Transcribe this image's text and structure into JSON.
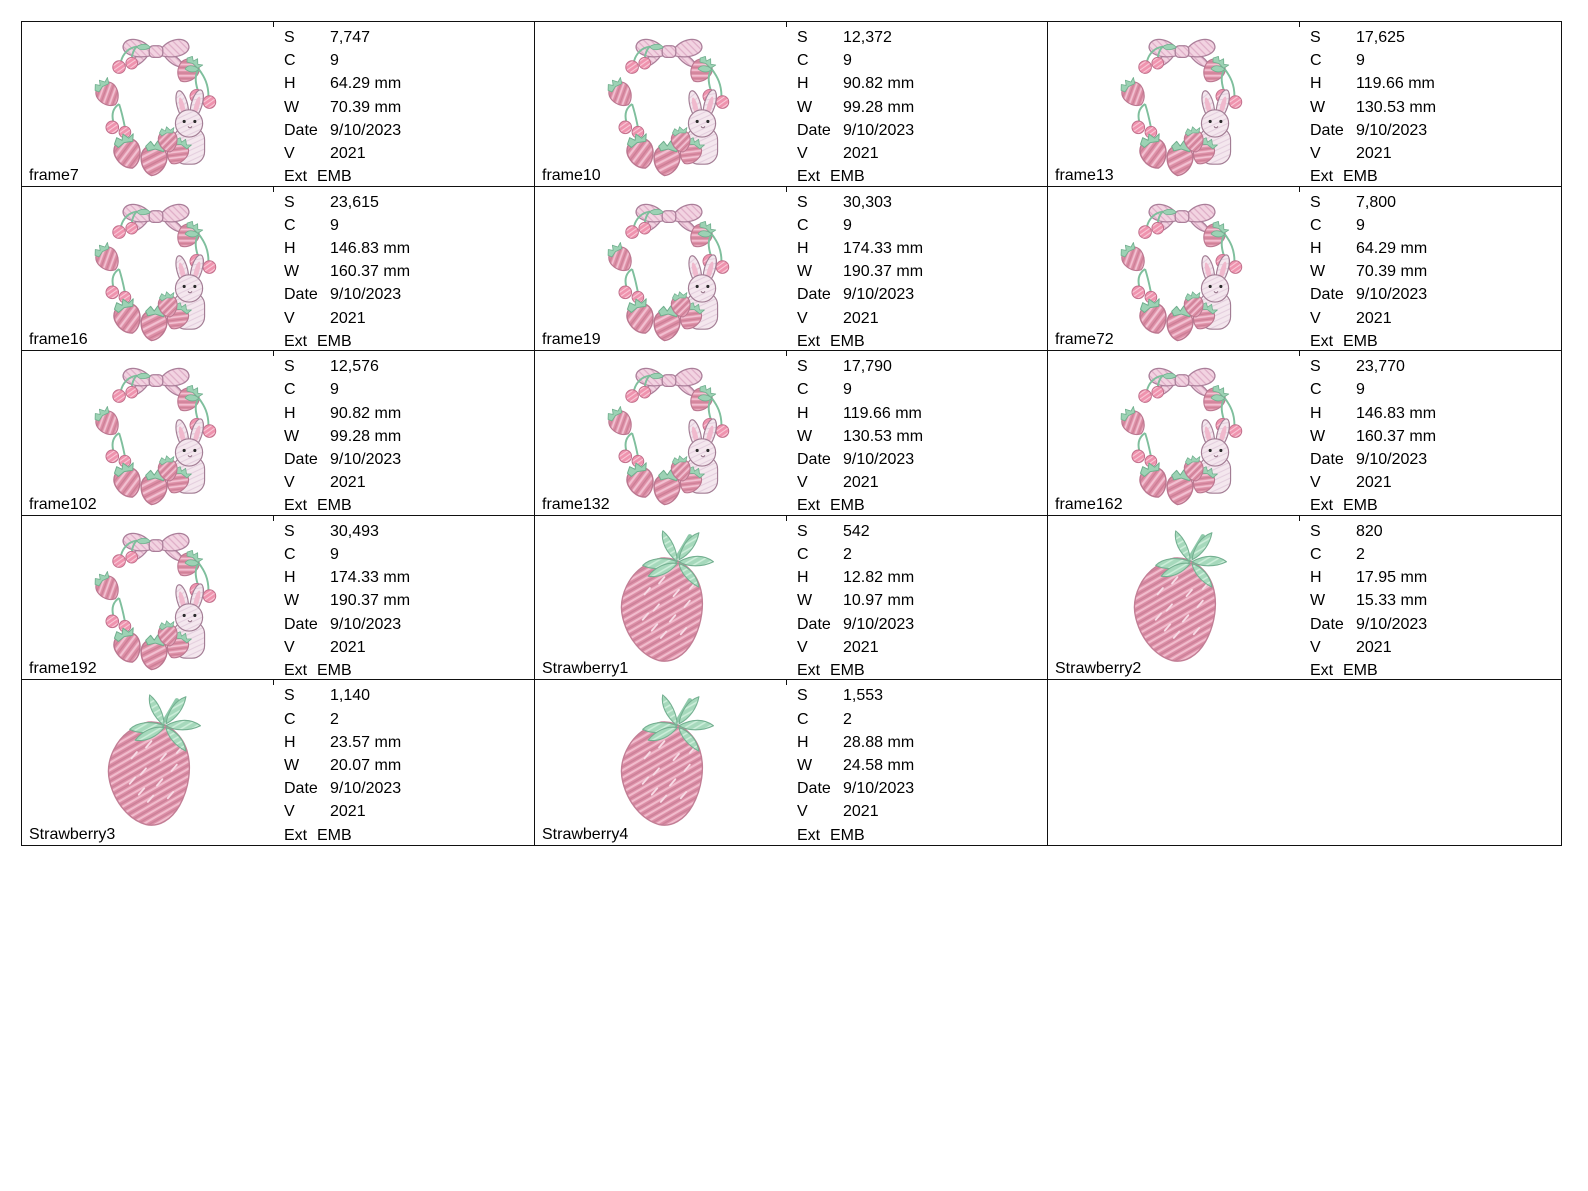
{
  "page": {
    "background": "#ffffff"
  },
  "table": {
    "meta_field_labels": [
      "S",
      "C",
      "H",
      "W",
      "Date",
      "V",
      "Ext"
    ],
    "trailing_empty_cells": 1,
    "cells": [
      {
        "name": "frame7",
        "image": "wreath",
        "meta": [
          [
            "S",
            "7,747"
          ],
          [
            "C",
            "9"
          ],
          [
            "H",
            "64.29 mm"
          ],
          [
            "W",
            "70.39 mm"
          ],
          [
            "Date",
            "9/10/2023"
          ],
          [
            "V",
            "2021"
          ],
          [
            "Ext",
            "EMB"
          ]
        ]
      },
      {
        "name": "frame10",
        "image": "wreath",
        "meta": [
          [
            "S",
            "12,372"
          ],
          [
            "C",
            "9"
          ],
          [
            "H",
            "90.82 mm"
          ],
          [
            "W",
            "99.28 mm"
          ],
          [
            "Date",
            "9/10/2023"
          ],
          [
            "V",
            "2021"
          ],
          [
            "Ext",
            "EMB"
          ]
        ]
      },
      {
        "name": "frame13",
        "image": "wreath",
        "meta": [
          [
            "S",
            "17,625"
          ],
          [
            "C",
            "9"
          ],
          [
            "H",
            "119.66 mm"
          ],
          [
            "W",
            "130.53 mm"
          ],
          [
            "Date",
            "9/10/2023"
          ],
          [
            "V",
            "2021"
          ],
          [
            "Ext",
            "EMB"
          ]
        ]
      },
      {
        "name": "frame16",
        "image": "wreath",
        "meta": [
          [
            "S",
            "23,615"
          ],
          [
            "C",
            "9"
          ],
          [
            "H",
            "146.83 mm"
          ],
          [
            "W",
            "160.37 mm"
          ],
          [
            "Date",
            "9/10/2023"
          ],
          [
            "V",
            "2021"
          ],
          [
            "Ext",
            "EMB"
          ]
        ]
      },
      {
        "name": "frame19",
        "image": "wreath",
        "meta": [
          [
            "S",
            "30,303"
          ],
          [
            "C",
            "9"
          ],
          [
            "H",
            "174.33 mm"
          ],
          [
            "W",
            "190.37 mm"
          ],
          [
            "Date",
            "9/10/2023"
          ],
          [
            "V",
            "2021"
          ],
          [
            "Ext",
            "EMB"
          ]
        ]
      },
      {
        "name": "frame72",
        "image": "wreath",
        "meta": [
          [
            "S",
            "7,800"
          ],
          [
            "C",
            "9"
          ],
          [
            "H",
            "64.29 mm"
          ],
          [
            "W",
            "70.39 mm"
          ],
          [
            "Date",
            "9/10/2023"
          ],
          [
            "V",
            "2021"
          ],
          [
            "Ext",
            "EMB"
          ]
        ]
      },
      {
        "name": "frame102",
        "image": "wreath",
        "meta": [
          [
            "S",
            "12,576"
          ],
          [
            "C",
            "9"
          ],
          [
            "H",
            "90.82 mm"
          ],
          [
            "W",
            "99.28 mm"
          ],
          [
            "Date",
            "9/10/2023"
          ],
          [
            "V",
            "2021"
          ],
          [
            "Ext",
            "EMB"
          ]
        ]
      },
      {
        "name": "frame132",
        "image": "wreath",
        "meta": [
          [
            "S",
            "17,790"
          ],
          [
            "C",
            "9"
          ],
          [
            "H",
            "119.66 mm"
          ],
          [
            "W",
            "130.53 mm"
          ],
          [
            "Date",
            "9/10/2023"
          ],
          [
            "V",
            "2021"
          ],
          [
            "Ext",
            "EMB"
          ]
        ]
      },
      {
        "name": "frame162",
        "image": "wreath",
        "meta": [
          [
            "S",
            "23,770"
          ],
          [
            "C",
            "9"
          ],
          [
            "H",
            "146.83 mm"
          ],
          [
            "W",
            "160.37 mm"
          ],
          [
            "Date",
            "9/10/2023"
          ],
          [
            "V",
            "2021"
          ],
          [
            "Ext",
            "EMB"
          ]
        ]
      },
      {
        "name": "frame192",
        "image": "wreath",
        "meta": [
          [
            "S",
            "30,493"
          ],
          [
            "C",
            "9"
          ],
          [
            "H",
            "174.33 mm"
          ],
          [
            "W",
            "190.37 mm"
          ],
          [
            "Date",
            "9/10/2023"
          ],
          [
            "V",
            "2021"
          ],
          [
            "Ext",
            "EMB"
          ]
        ]
      },
      {
        "name": "Strawberry1",
        "image": "strawberry",
        "meta": [
          [
            "S",
            "542"
          ],
          [
            "C",
            "2"
          ],
          [
            "H",
            "12.82 mm"
          ],
          [
            "W",
            "10.97 mm"
          ],
          [
            "Date",
            "9/10/2023"
          ],
          [
            "V",
            "2021"
          ],
          [
            "Ext",
            "EMB"
          ]
        ]
      },
      {
        "name": "Strawberry2",
        "image": "strawberry",
        "meta": [
          [
            "S",
            "820"
          ],
          [
            "C",
            "2"
          ],
          [
            "H",
            "17.95 mm"
          ],
          [
            "W",
            "15.33 mm"
          ],
          [
            "Date",
            "9/10/2023"
          ],
          [
            "V",
            "2021"
          ],
          [
            "Ext",
            "EMB"
          ]
        ]
      },
      {
        "name": "Strawberry3",
        "image": "strawberry",
        "meta": [
          [
            "S",
            "1,140"
          ],
          [
            "C",
            "2"
          ],
          [
            "H",
            "23.57 mm"
          ],
          [
            "W",
            "20.07 mm"
          ],
          [
            "Date",
            "9/10/2023"
          ],
          [
            "V",
            "2021"
          ],
          [
            "Ext",
            "EMB"
          ]
        ]
      },
      {
        "name": "Strawberry4",
        "image": "strawberry",
        "meta": [
          [
            "S",
            "1,553"
          ],
          [
            "C",
            "2"
          ],
          [
            "H",
            "28.88 mm"
          ],
          [
            "W",
            "24.58 mm"
          ],
          [
            "Date",
            "9/10/2023"
          ],
          [
            "V",
            "2021"
          ],
          [
            "Ext",
            "EMB"
          ]
        ]
      }
    ]
  },
  "colors": {
    "border": "#111111",
    "text": "#000000",
    "strawberry_pink": "#dd8fa6",
    "strawberry_light": "#f2c0d1",
    "cherry_pink": "#ef93ae",
    "leaf_green": "#9cd2b4",
    "bow_pink": "#f2d3e1",
    "bunny_pink": "#f4e7ee",
    "outline_mauve": "#a87e99"
  }
}
